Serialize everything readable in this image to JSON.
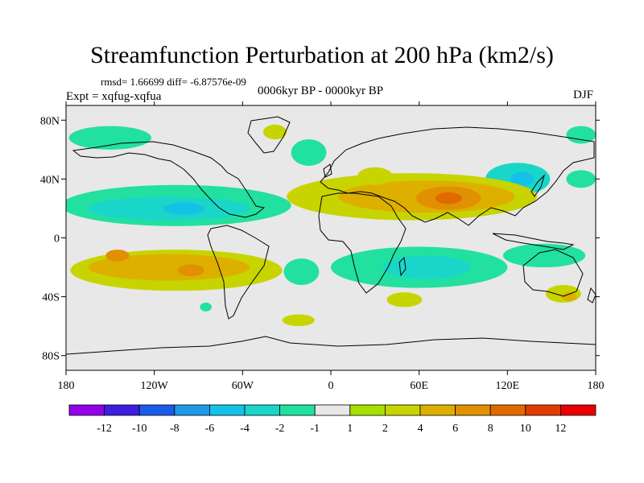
{
  "header": {
    "title": "Streamfunction Perturbation at 200 hPa (km2/s)",
    "stats": "rmsd= 1.66699 diff= -6.87576e-09",
    "expt": "Expt = xqfug-xqfua",
    "period": "0006kyr BP - 0000kyr BP",
    "season": "DJF"
  },
  "chart_data": {
    "type": "heatmap",
    "title": "Streamfunction Perturbation at 200 hPa (km2/s)",
    "xlabel": "",
    "ylabel": "",
    "xlim": [
      -180,
      180
    ],
    "ylim": [
      -90,
      90
    ],
    "x_ticks": [
      {
        "value": -180,
        "label": "180"
      },
      {
        "value": -120,
        "label": "120W"
      },
      {
        "value": -60,
        "label": "60W"
      },
      {
        "value": 0,
        "label": "0"
      },
      {
        "value": 60,
        "label": "60E"
      },
      {
        "value": 120,
        "label": "120E"
      },
      {
        "value": 180,
        "label": "180"
      }
    ],
    "y_ticks": [
      {
        "value": 80,
        "label": "80N"
      },
      {
        "value": 40,
        "label": "40N"
      },
      {
        "value": 0,
        "label": "0"
      },
      {
        "value": -40,
        "label": "40S"
      },
      {
        "value": -80,
        "label": "80S"
      }
    ],
    "colorbar": {
      "labels": [
        "-12",
        "-10",
        "-8",
        "-6",
        "-4",
        "-2",
        "-1",
        "1",
        "2",
        "4",
        "6",
        "8",
        "10",
        "12"
      ],
      "colors": [
        "#9400e8",
        "#3b1ee0",
        "#1a5ce8",
        "#1c9ae6",
        "#14c2e8",
        "#1ad6c8",
        "#22e0a0",
        "#e8e8e8",
        "#a6e000",
        "#c8d400",
        "#ddb000",
        "#e09000",
        "#e06a00",
        "#e03c00",
        "#e80000"
      ]
    },
    "anomalies": [
      {
        "name": "north-atlantic-pos",
        "lon": -38,
        "lat": 72,
        "rx": 8,
        "ry": 5,
        "value": 2
      },
      {
        "name": "nw-america-neg",
        "lon": -150,
        "lat": 68,
        "rx": 28,
        "ry": 8,
        "value": -2
      },
      {
        "name": "ne-europe-neg",
        "lon": -15,
        "lat": 58,
        "rx": 12,
        "ry": 9,
        "value": -2
      },
      {
        "name": "arctic-russia-neg",
        "lon": 170,
        "lat": 70,
        "rx": 10,
        "ry": 6,
        "value": -2
      },
      {
        "name": "pacific-40n-neg",
        "lon": 170,
        "lat": 40,
        "rx": 10,
        "ry": 6,
        "value": -2
      },
      {
        "name": "east-asia-neg",
        "lon": 127,
        "lat": 40,
        "rx": 22,
        "ry": 11,
        "value": -4
      },
      {
        "name": "east-asia-core",
        "lon": 130,
        "lat": 40,
        "rx": 8,
        "ry": 5,
        "value": -6
      },
      {
        "name": "n-pacific-atlantic-neg",
        "lon": -105,
        "lat": 22,
        "rx": 78,
        "ry": 14,
        "value": -2
      },
      {
        "name": "n-pacific-core",
        "lon": -110,
        "lat": 20,
        "rx": 55,
        "ry": 8,
        "value": -4
      },
      {
        "name": "n-pacific-core2",
        "lon": -100,
        "lat": 20,
        "rx": 14,
        "ry": 4,
        "value": -6
      },
      {
        "name": "eurasia-pos",
        "lon": 55,
        "lat": 28,
        "rx": 85,
        "ry": 16,
        "value": 2
      },
      {
        "name": "eurasia-mid",
        "lon": 65,
        "lat": 28,
        "rx": 60,
        "ry": 11,
        "value": 4
      },
      {
        "name": "tibet-core",
        "lon": 80,
        "lat": 27,
        "rx": 22,
        "ry": 8,
        "value": 6
      },
      {
        "name": "tibet-inner",
        "lon": 80,
        "lat": 27,
        "rx": 9,
        "ry": 4,
        "value": 8
      },
      {
        "name": "arabia-pos",
        "lon": 30,
        "lat": 42,
        "rx": 12,
        "ry": 6,
        "value": 2
      },
      {
        "name": "s-pacific-pos",
        "lon": -105,
        "lat": -22,
        "rx": 72,
        "ry": 14,
        "value": 2
      },
      {
        "name": "s-pacific-mid",
        "lon": -110,
        "lat": -20,
        "rx": 55,
        "ry": 9,
        "value": 4
      },
      {
        "name": "s-pacific-core",
        "lon": -145,
        "lat": -12,
        "rx": 8,
        "ry": 4,
        "value": 6
      },
      {
        "name": "s-pacific-core2",
        "lon": -95,
        "lat": -22,
        "rx": 9,
        "ry": 4,
        "value": 6
      },
      {
        "name": "indian-ocean-neg",
        "lon": 60,
        "lat": -20,
        "rx": 60,
        "ry": 14,
        "value": -2
      },
      {
        "name": "indian-ocean-core",
        "lon": 65,
        "lat": -20,
        "rx": 30,
        "ry": 8,
        "value": -4
      },
      {
        "name": "s-atlantic-neg",
        "lon": -20,
        "lat": -23,
        "rx": 12,
        "ry": 9,
        "value": -2
      },
      {
        "name": "s-indian-pos",
        "lon": 50,
        "lat": -42,
        "rx": 12,
        "ry": 5,
        "value": 2
      },
      {
        "name": "australia-neg",
        "lon": 145,
        "lat": -12,
        "rx": 28,
        "ry": 8,
        "value": -2
      },
      {
        "name": "tasman-pos",
        "lon": 158,
        "lat": -38,
        "rx": 12,
        "ry": 6,
        "value": 2
      },
      {
        "name": "tasman-core",
        "lon": 162,
        "lat": -40,
        "rx": 5,
        "ry": 3,
        "value": 4
      },
      {
        "name": "s-ocean-pos",
        "lon": -22,
        "lat": -56,
        "rx": 11,
        "ry": 4,
        "value": 2
      },
      {
        "name": "patagonia-neg",
        "lon": -85,
        "lat": -47,
        "rx": 4,
        "ry": 3,
        "value": -2
      }
    ]
  }
}
